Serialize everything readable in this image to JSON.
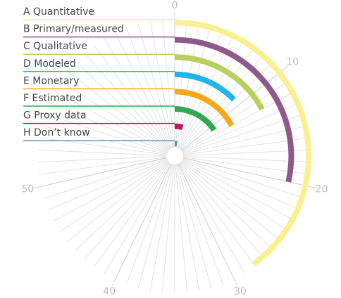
{
  "chart_data": {
    "type": "radial_bar",
    "categories": [
      "A  Quantitative",
      "B  Primary/measured",
      "C  Qualitative",
      "D  Modeled",
      "E  Monetary",
      "F  Estimated",
      "G  Proxy data",
      "H  Don’t know"
    ],
    "values": [
      28,
      20,
      12,
      9,
      12,
      11,
      3,
      2
    ],
    "colors": [
      "#fbf08f",
      "#8e5a8c",
      "#b8d05c",
      "#20b5e6",
      "#f6a81c",
      "#2fa84f",
      "#c2185b",
      "#6f8ea6"
    ],
    "xlim": [
      0,
      70
    ],
    "xticks": [
      0,
      10,
      20,
      30,
      40,
      50
    ]
  }
}
